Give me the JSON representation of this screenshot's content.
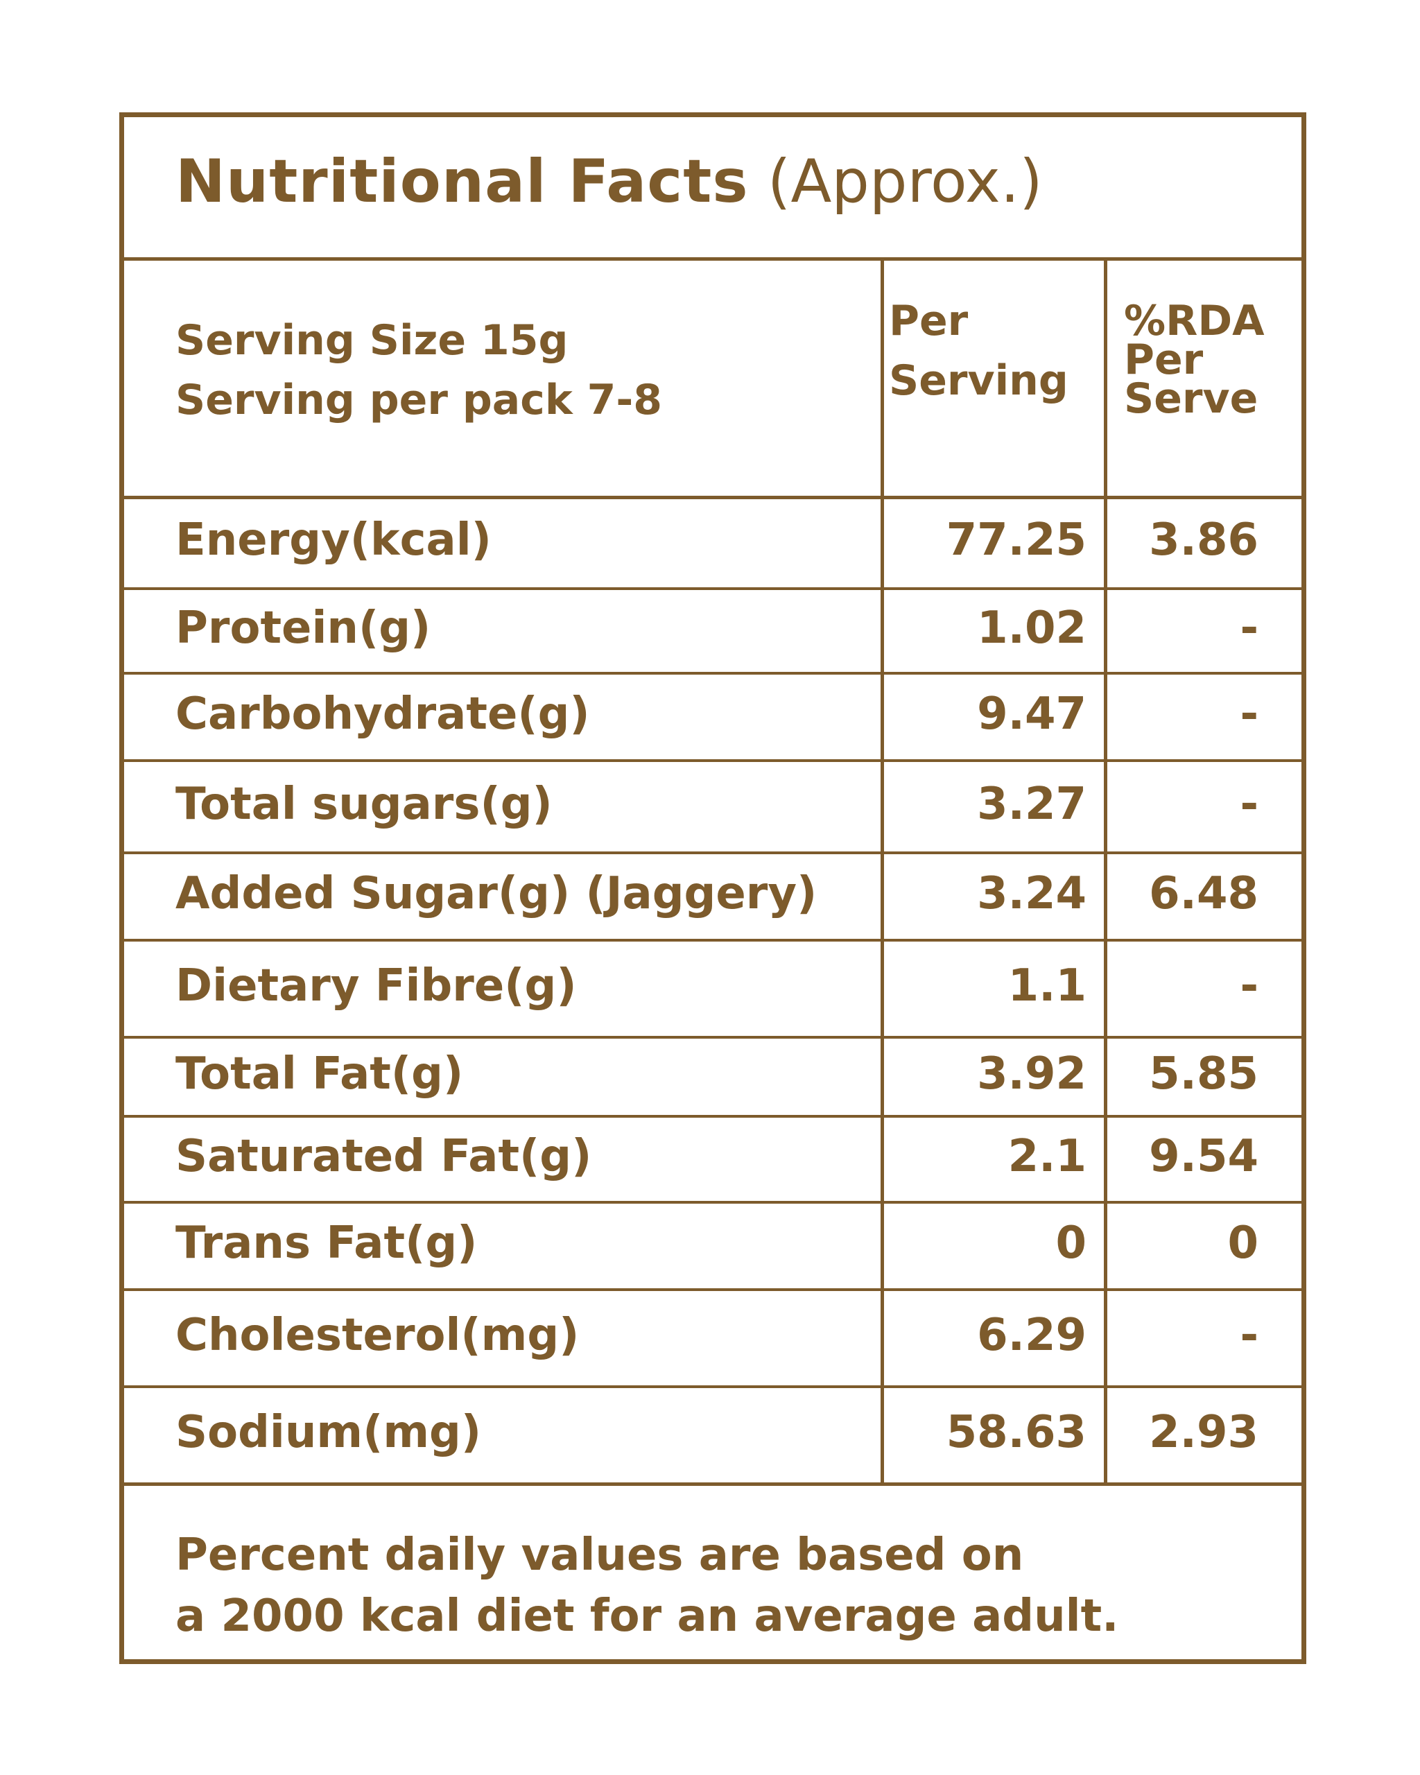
{
  "title": {
    "bold": "Nutritional Facts",
    "light": "(Approx.)"
  },
  "header": {
    "serving_size": "Serving Size 15g",
    "serving_per_pack": "Serving per pack 7-8",
    "col_per_serving": [
      "Per",
      "Serving"
    ],
    "col_rda": [
      "%RDA",
      "Per",
      "Serve"
    ]
  },
  "rows": [
    {
      "name": "Energy(kcal)",
      "per_serving": "77.25",
      "rda": "3.86"
    },
    {
      "name": "Protein(g)",
      "per_serving": "1.02",
      "rda": "-"
    },
    {
      "name": "Carbohydrate(g)",
      "per_serving": "9.47",
      "rda": "-"
    },
    {
      "name": "Total sugars(g)",
      "per_serving": "3.27",
      "rda": "-"
    },
    {
      "name": "Added Sugar(g) (Jaggery)",
      "per_serving": "3.24",
      "rda": "6.48"
    },
    {
      "name": "Dietary Fibre(g)",
      "per_serving": "1.1",
      "rda": "-"
    },
    {
      "name": "Total Fat(g)",
      "per_serving": "3.92",
      "rda": "5.85"
    },
    {
      "name": "Saturated Fat(g)",
      "per_serving": "2.1",
      "rda": "9.54"
    },
    {
      "name": "Trans Fat(g)",
      "per_serving": "0",
      "rda": "0"
    },
    {
      "name": "Cholesterol(mg)",
      "per_serving": "6.29",
      "rda": "-"
    },
    {
      "name": "Sodium(mg)",
      "per_serving": "58.63",
      "rda": "2.93"
    }
  ],
  "footer": [
    "Percent daily values are based on",
    "a 2000 kcal diet for an average adult."
  ],
  "colors": {
    "ink": "#7d5b2c",
    "background": "#ffffff"
  }
}
